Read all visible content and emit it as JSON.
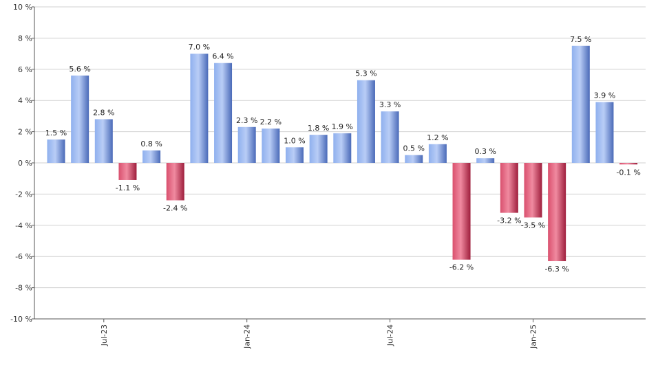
{
  "chart_data": {
    "type": "bar",
    "title": "",
    "xlabel": "",
    "ylabel": "",
    "ylim": [
      -10,
      10
    ],
    "y_ticks": [
      -10,
      -8,
      -6,
      -4,
      -2,
      0,
      2,
      4,
      6,
      8,
      10
    ],
    "y_tick_suffix": " %",
    "grid": true,
    "legend": "none",
    "x_tick_labels": [
      {
        "label": "Jul-23",
        "index": 2
      },
      {
        "label": "Jan-24",
        "index": 8
      },
      {
        "label": "Jul-24",
        "index": 14
      },
      {
        "label": "Jan-25",
        "index": 20
      }
    ],
    "values": [
      1.5,
      5.6,
      2.8,
      -1.1,
      0.8,
      -2.4,
      7.0,
      6.4,
      2.3,
      2.2,
      1.0,
      1.8,
      1.9,
      5.3,
      3.3,
      0.5,
      1.2,
      -6.2,
      0.3,
      -3.2,
      -3.5,
      -6.3,
      7.5,
      3.9,
      -0.1
    ],
    "value_labels": [
      "1.5 %",
      "5.6 %",
      "2.8 %",
      "-1.1 %",
      "0.8 %",
      "-2.4 %",
      "7.0 %",
      "6.4 %",
      "2.3 %",
      "2.2 %",
      "1.0 %",
      "1.8 %",
      "1.9 %",
      "5.3 %",
      "3.3 %",
      "0.5 %",
      "1.2 %",
      "-6.2 %",
      "0.3 %",
      "-3.2 %",
      "-3.5 %",
      "-6.3 %",
      "7.5 %",
      "3.9 %",
      "-0.1 %"
    ],
    "colors": {
      "positive": "#7f9fe0",
      "negative": "#c8324f",
      "grid": "#d0d0d0",
      "axis": "#555555"
    }
  }
}
